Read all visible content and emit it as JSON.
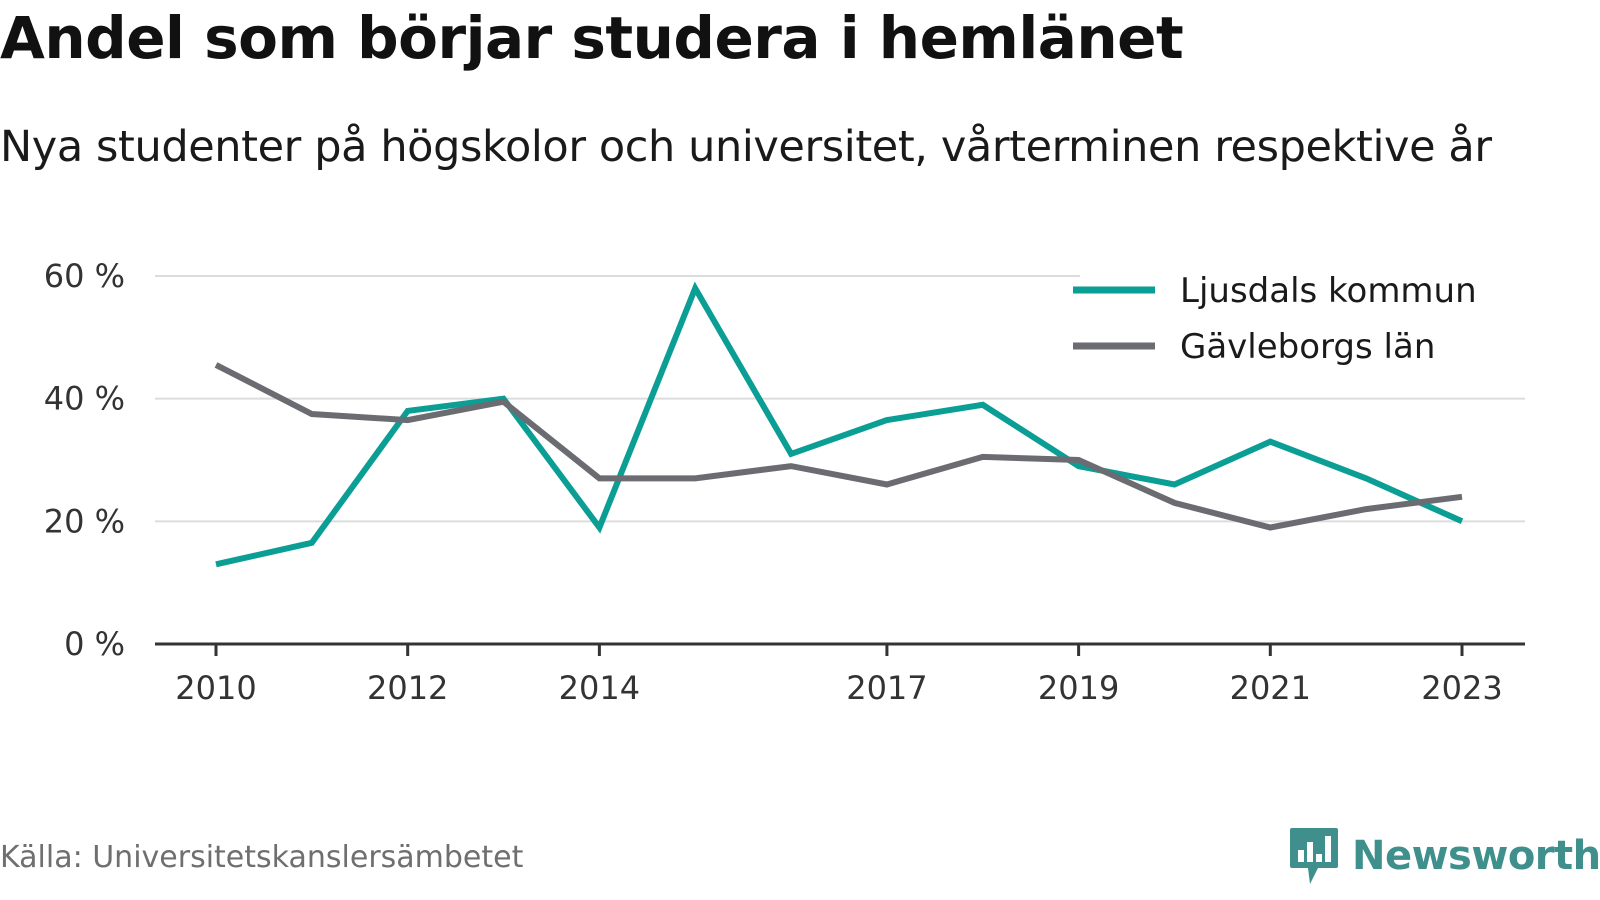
{
  "title": "Andel som börjar studera i hemlänet",
  "subtitle": "Nya studenter på högskolor och universitet, vårterminen respektive år",
  "source": "Källa: Universitetskanslersämbetet",
  "brand": {
    "name": "Newsworthy",
    "icon": "newsworthy-logo-icon",
    "color": "#3f8f8c"
  },
  "chart_data": {
    "type": "line",
    "x": [
      2010,
      2011,
      2012,
      2013,
      2014,
      2015,
      2016,
      2017,
      2018,
      2019,
      2020,
      2021,
      2022,
      2023
    ],
    "x_tick_labels": [
      "2010",
      "2012",
      "2014",
      "2017",
      "2019",
      "2021",
      "2023"
    ],
    "y_tick_labels": [
      "0 %",
      "20 %",
      "40 %",
      "60 %"
    ],
    "y_ticks": [
      0,
      20,
      40,
      60
    ],
    "ylim": [
      0,
      60
    ],
    "xlim": [
      2009.4,
      2023.6
    ],
    "grid": true,
    "legend_placement": "top-right",
    "series": [
      {
        "name": "Ljusdals kommun",
        "color": "#0a9e94",
        "values": [
          13,
          16.5,
          38,
          40,
          19,
          58,
          31,
          36.5,
          39,
          29,
          26,
          33,
          27,
          20
        ]
      },
      {
        "name": "Gävleborgs län",
        "color": "#6b6b72",
        "values": [
          45.5,
          37.5,
          36.5,
          39.5,
          27,
          27,
          29,
          26,
          30.5,
          30,
          23,
          19,
          22,
          24
        ]
      }
    ]
  }
}
